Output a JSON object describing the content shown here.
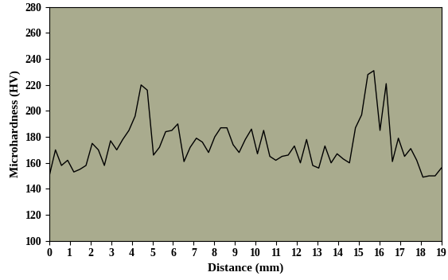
{
  "chart_data": {
    "type": "line",
    "x_label": "Distance (mm)",
    "y_label": "Microhardness (HV)",
    "x": [
      0,
      0.3,
      0.59,
      0.89,
      1.19,
      1.48,
      1.78,
      2.08,
      2.38,
      2.67,
      2.97,
      3.27,
      3.56,
      3.86,
      4.16,
      4.45,
      4.75,
      5.05,
      5.34,
      5.64,
      5.94,
      6.23,
      6.53,
      6.83,
      7.13,
      7.42,
      7.72,
      8.02,
      8.31,
      8.61,
      8.91,
      9.2,
      9.5,
      9.8,
      10.09,
      10.39,
      10.69,
      10.98,
      11.28,
      11.58,
      11.88,
      12.17,
      12.47,
      12.77,
      13.06,
      13.36,
      13.66,
      13.95,
      14.25,
      14.55,
      14.84,
      15.14,
      15.44,
      15.73,
      16.03,
      16.33,
      16.63,
      16.92,
      17.22,
      17.52,
      17.81,
      18.11,
      18.41,
      18.7,
      19.0
    ],
    "values": [
      150,
      170,
      158,
      162,
      153,
      155,
      158,
      175,
      170,
      158,
      177,
      170,
      178,
      185,
      196,
      220,
      216,
      166,
      172,
      184,
      185,
      190,
      161,
      172,
      179,
      176,
      168,
      180,
      187,
      187,
      174,
      168,
      178,
      186,
      167,
      185,
      165,
      162,
      165,
      166,
      173,
      160,
      178,
      158,
      156,
      173,
      160,
      167,
      163,
      160,
      187,
      197,
      228,
      231,
      185,
      221,
      161,
      179,
      165,
      171,
      162,
      149,
      150,
      150,
      156
    ],
    "color": "#000000",
    "xlim": [
      0,
      19
    ],
    "xticks": [
      0,
      1,
      2,
      3,
      4,
      5,
      6,
      7,
      8,
      9,
      10,
      11,
      12,
      13,
      14,
      15,
      16,
      17,
      18,
      19
    ],
    "ylim": [
      100,
      280
    ],
    "yticks": [
      100,
      120,
      140,
      160,
      180,
      200,
      220,
      240,
      260,
      280
    ],
    "grid": false
  }
}
